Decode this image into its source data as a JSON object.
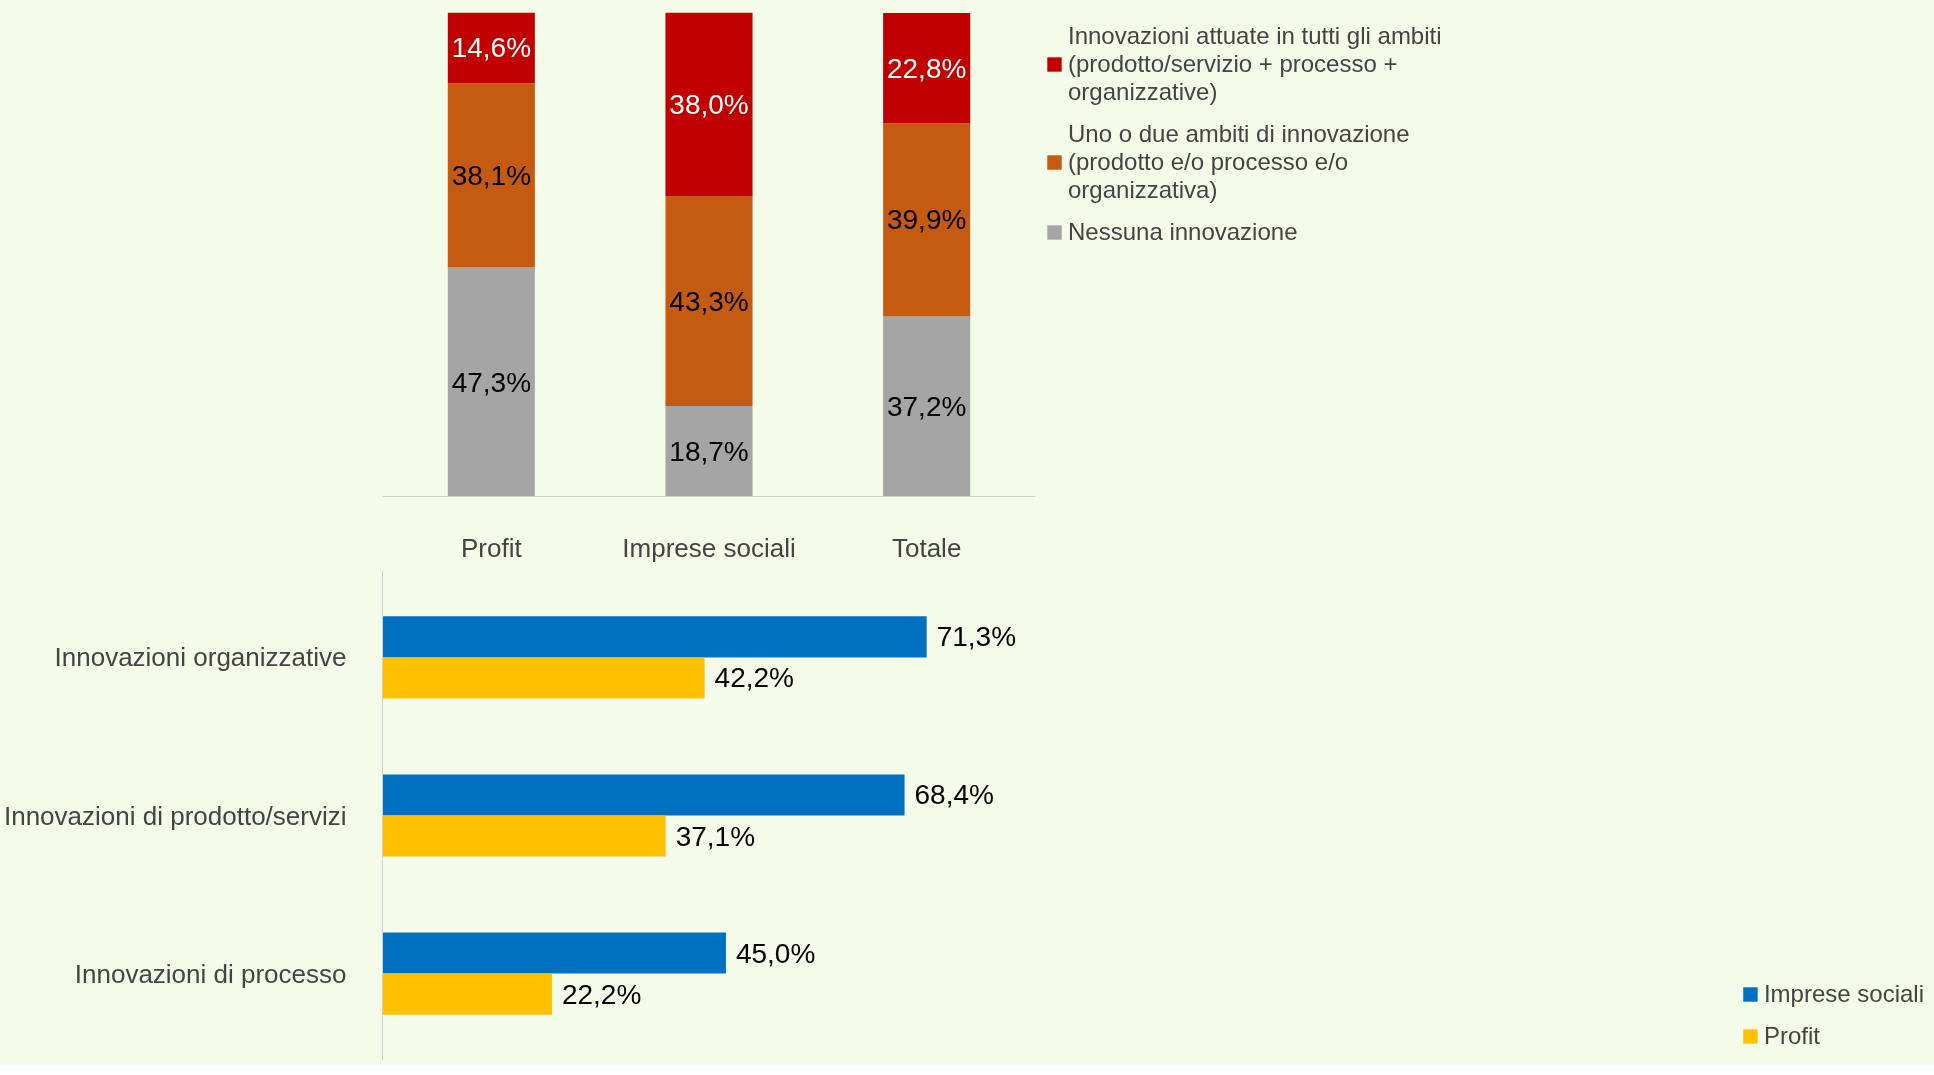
{
  "chart_data": [
    {
      "type": "bar",
      "stacked": true,
      "categories": [
        "Profit",
        "Imprese sociali",
        "Totale"
      ],
      "ylim": [
        0,
        100
      ],
      "tick_labels": "x",
      "grid": false,
      "legend": "right",
      "series": [
        {
          "name": "Nessuna innovazione",
          "color": "#a5a5a5",
          "values": [
            47.3,
            18.7,
            37.2
          ],
          "value_labels": [
            "47,3%",
            "18,7%",
            "37,2%"
          ]
        },
        {
          "name": "Uno o due ambiti di innovazione (prodotto e/o processo e/o organizzativa)",
          "color": "#c55a11",
          "values": [
            38.1,
            43.3,
            39.9
          ],
          "value_labels": [
            "38,1%",
            "43,3%",
            "39,9%"
          ]
        },
        {
          "name": "Innovazioni attuate in tutti gli ambiti (prodotto/servizio + processo + organizzative)",
          "color": "#c00000",
          "values": [
            14.6,
            38.0,
            22.8
          ],
          "value_labels": [
            "14,6%",
            "38,0%",
            "22,8%"
          ]
        }
      ]
    },
    {
      "type": "bar",
      "orientation": "horizontal",
      "categories": [
        "Innovazioni organizzative",
        "Innovazioni di prodotto/servizi",
        "Innovazioni di processo"
      ],
      "tick_labels": "y",
      "grid": false,
      "legend": "bottom right",
      "series": [
        {
          "name": "Imprese sociali",
          "color": "#0070c0",
          "values": [
            71.3,
            68.4,
            45.0
          ],
          "value_labels": [
            "71,3%",
            "68,4%",
            "45,0%"
          ]
        },
        {
          "name": "Profit",
          "color": "#ffc000",
          "values": [
            42.2,
            37.1,
            22.2
          ],
          "value_labels": [
            "42,2%",
            "37,1%",
            "22,2%"
          ]
        }
      ]
    }
  ]
}
